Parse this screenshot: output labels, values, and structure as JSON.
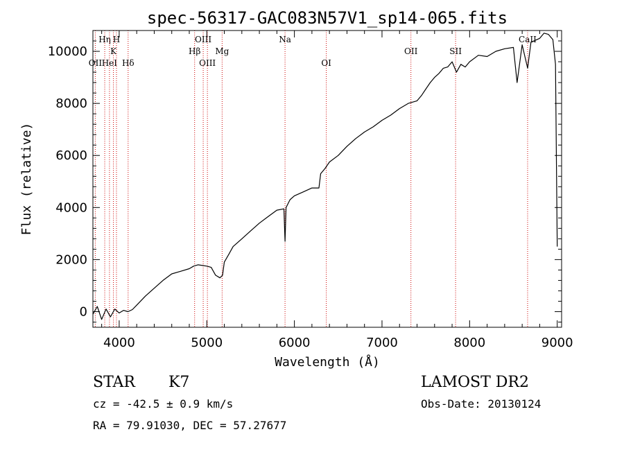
{
  "chart_data": {
    "type": "line",
    "title": "spec-56317-GAC083N57V1_sp14-065.fits",
    "xlabel": "Wavelength (Å)",
    "ylabel": "Flux (relative)",
    "xlim": [
      3700,
      9050
    ],
    "ylim": [
      -600,
      10800
    ],
    "x_ticks": [
      4000,
      5000,
      6000,
      7000,
      8000,
      9000
    ],
    "y_ticks": [
      0,
      2000,
      4000,
      6000,
      8000,
      10000
    ],
    "grid": false,
    "line_color": "#000000",
    "marker_color": "#cc0000",
    "series": [
      {
        "x": [
          3700,
          3750,
          3800,
          3850,
          3900,
          3950,
          4000,
          4050,
          4100,
          4150,
          4200,
          4300,
          4400,
          4500,
          4600,
          4700,
          4800,
          4850,
          4900,
          5000,
          5050,
          5100,
          5150,
          5180,
          5200,
          5250,
          5300,
          5400,
          5500,
          5600,
          5700,
          5800,
          5880,
          5893,
          5905,
          5950,
          6000,
          6100,
          6200,
          6280,
          6300,
          6350,
          6400,
          6500,
          6600,
          6700,
          6800,
          6900,
          7000,
          7100,
          7200,
          7300,
          7400,
          7450,
          7500,
          7550,
          7600,
          7650,
          7700,
          7750,
          7800,
          7850,
          7900,
          7950,
          8000,
          8100,
          8200,
          8300,
          8400,
          8500,
          8542,
          8600,
          8662,
          8700,
          8800,
          8850,
          8900,
          8950,
          8980,
          9000
        ],
        "y": [
          -100,
          200,
          -300,
          100,
          -200,
          100,
          -50,
          50,
          0,
          80,
          250,
          600,
          900,
          1200,
          1450,
          1550,
          1650,
          1750,
          1800,
          1750,
          1700,
          1400,
          1300,
          1400,
          1900,
          2200,
          2500,
          2800,
          3100,
          3400,
          3650,
          3900,
          3950,
          2700,
          4000,
          4300,
          4450,
          4600,
          4750,
          4750,
          5300,
          5500,
          5750,
          6000,
          6350,
          6650,
          6900,
          7100,
          7350,
          7550,
          7800,
          8000,
          8100,
          8300,
          8550,
          8800,
          9000,
          9150,
          9350,
          9400,
          9600,
          9200,
          9500,
          9400,
          9600,
          9850,
          9800,
          10000,
          10100,
          10150,
          8800,
          10250,
          9350,
          10350,
          10500,
          10700,
          10650,
          10450,
          9500,
          2500
        ]
      }
    ],
    "spectral_lines": [
      {
        "label": "OII",
        "x": 3727,
        "row": 3
      },
      {
        "label": "Hη",
        "x": 3835,
        "row": 1
      },
      {
        "label": "HeI",
        "x": 3889,
        "row": 3
      },
      {
        "label": "K",
        "x": 3934,
        "row": 2
      },
      {
        "label": "H",
        "x": 3969,
        "row": 1
      },
      {
        "label": "Hδ",
        "x": 4102,
        "row": 3
      },
      {
        "label": "Hβ",
        "x": 4861,
        "row": 2
      },
      {
        "label": "OIII",
        "x": 4959,
        "row": 1
      },
      {
        "label": "OIII",
        "x": 5007,
        "row": 3
      },
      {
        "label": "Mg",
        "x": 5175,
        "row": 2
      },
      {
        "label": "Na",
        "x": 5893,
        "row": 1
      },
      {
        "label": "OI",
        "x": 6364,
        "row": 3
      },
      {
        "label": "OII",
        "x": 7330,
        "row": 2
      },
      {
        "label": "SII",
        "x": 7840,
        "row": 2
      },
      {
        "label": "CaII",
        "x": 8662,
        "row": 1
      }
    ]
  },
  "info": {
    "object_class": "STAR",
    "subclass": "K7",
    "survey": "LAMOST DR2",
    "redshift": "cz = -42.5 ± 0.9 km/s",
    "obs_date": "Obs-Date: 20130124",
    "coords": "RA =  79.91030, DEC =  57.27677"
  }
}
